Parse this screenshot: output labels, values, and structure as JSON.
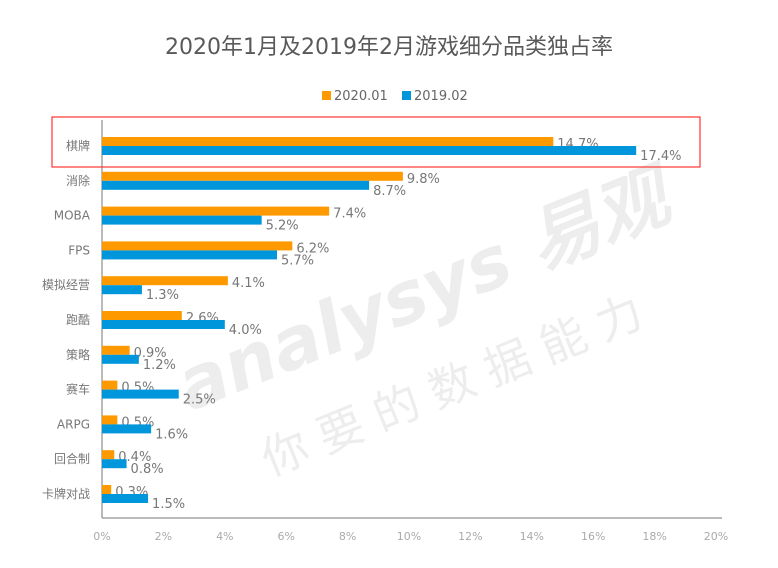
{
  "chart_data": {
    "type": "bar",
    "orientation": "horizontal",
    "title": "2020年1月及2019年2月游戏细分品类独占率",
    "categories": [
      "棋牌",
      "消除",
      "MOBA",
      "FPS",
      "模拟经营",
      "跑酷",
      "策略",
      "赛车",
      "ARPG",
      "回合制",
      "卡牌对战"
    ],
    "series": [
      {
        "name": "2020.01",
        "color": "#FF9900",
        "values": [
          14.7,
          9.8,
          7.4,
          6.2,
          4.1,
          2.6,
          0.9,
          0.5,
          0.5,
          0.4,
          0.3
        ]
      },
      {
        "name": "2019.02",
        "color": "#0096DC",
        "values": [
          17.4,
          8.7,
          5.2,
          5.7,
          1.3,
          4.0,
          1.2,
          2.5,
          1.6,
          0.8,
          1.5
        ]
      }
    ],
    "xlim": [
      0,
      20
    ],
    "xticks": [
      "0%",
      "2%",
      "4%",
      "6%",
      "8%",
      "10%",
      "12%",
      "14%",
      "16%",
      "18%",
      "20%"
    ],
    "legend": "top",
    "grid": false,
    "highlight": {
      "category": "棋牌",
      "color": "#FF3333"
    }
  },
  "watermark": {
    "brand": "analysys 易观",
    "slogan": "你要的数据能力"
  }
}
